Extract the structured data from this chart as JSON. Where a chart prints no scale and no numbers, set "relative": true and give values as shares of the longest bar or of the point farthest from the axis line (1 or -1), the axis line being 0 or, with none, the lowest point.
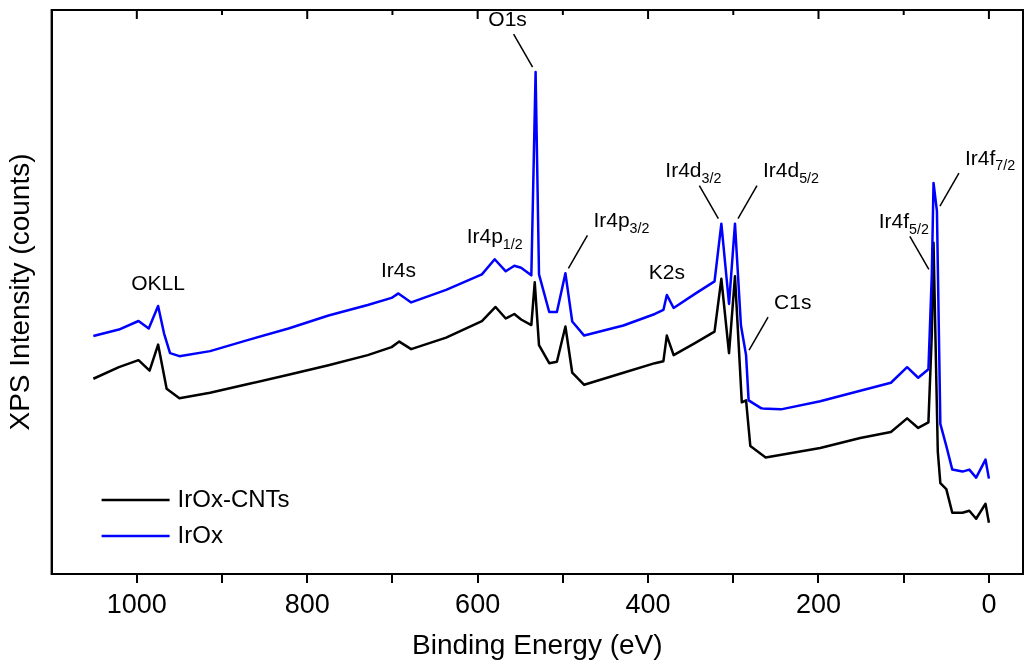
{
  "chart_data": {
    "type": "line",
    "xlabel": "Binding Energy (eV)",
    "ylabel": "XPS Intensity (counts)",
    "relative": true,
    "legend": "bottom left",
    "marker": "none",
    "line_style": "solid",
    "grid": false,
    "xlim": [
      1100,
      -40
    ],
    "xticks": [
      {
        "value": 1000,
        "label": "1000"
      },
      {
        "value": 900,
        "label": null
      },
      {
        "value": 800,
        "label": "800"
      },
      {
        "value": 700,
        "label": null
      },
      {
        "value": 600,
        "label": "600"
      },
      {
        "value": 500,
        "label": null
      },
      {
        "value": 400,
        "label": "400"
      },
      {
        "value": 300,
        "label": null
      },
      {
        "value": 200,
        "label": "200"
      },
      {
        "value": 100,
        "label": null
      },
      {
        "value": 0,
        "label": "0"
      }
    ],
    "series": [
      {
        "name": "IrOx-CNTs",
        "color": "#000000",
        "x": [
          1051,
          1021,
          998,
          985,
          975,
          965,
          950,
          914,
          868,
          822,
          775,
          729,
          701,
          692,
          678,
          637,
          595,
          579,
          567,
          557,
          549,
          537,
          533,
          532,
          528,
          516,
          507,
          497,
          489,
          475,
          429,
          392,
          382,
          378,
          370,
          345,
          322,
          314,
          305,
          298,
          290,
          285,
          280,
          262,
          198,
          151,
          115,
          96,
          83,
          71,
          67,
          65,
          60,
          57,
          50,
          43,
          31,
          23,
          15,
          4,
          0
        ],
        "values": [
          0.389,
          0.412,
          0.426,
          0.405,
          0.457,
          0.369,
          0.35,
          0.361,
          0.379,
          0.397,
          0.416,
          0.436,
          0.452,
          0.463,
          0.448,
          0.471,
          0.504,
          0.532,
          0.509,
          0.518,
          0.507,
          0.496,
          0.581,
          null,
          0.456,
          0.42,
          0.423,
          0.493,
          0.401,
          0.377,
          0.401,
          0.42,
          0.424,
          0.475,
          0.436,
          0.46,
          0.483,
          0.588,
          0.44,
          0.593,
          0.342,
          0.346,
          0.255,
          0.232,
          0.251,
          0.271,
          0.283,
          0.31,
          0.291,
          0.302,
          0.479,
          0.66,
          0.244,
          0.181,
          0.169,
          0.122,
          0.122,
          0.126,
          0.11,
          0.14,
          0.102
        ]
      },
      {
        "name": "IrOx",
        "color": "#0000ff",
        "x": [
          1051,
          1021,
          998,
          986,
          975,
          968,
          961,
          950,
          914,
          868,
          822,
          775,
          729,
          701,
          693,
          678,
          637,
          595,
          580,
          567,
          557,
          549,
          537,
          532,
          528,
          516,
          507,
          497,
          489,
          475,
          429,
          392,
          382,
          378,
          370,
          345,
          322,
          314,
          305,
          298,
          291,
          285,
          282,
          267,
          244,
          198,
          151,
          115,
          96,
          83,
          71,
          67,
          65,
          61,
          57,
          50,
          43,
          31,
          23,
          15,
          4,
          0
        ],
        "values": [
          0.474,
          0.487,
          0.504,
          0.489,
          0.534,
          0.479,
          0.44,
          0.434,
          0.444,
          0.467,
          0.489,
          0.515,
          0.536,
          0.55,
          0.559,
          0.541,
          0.566,
          0.597,
          0.627,
          0.603,
          0.614,
          0.61,
          0.595,
          1,
          0.597,
          0.522,
          0.522,
          0.599,
          0.503,
          0.475,
          0.495,
          0.518,
          0.526,
          0.556,
          0.53,
          0.558,
          0.583,
          0.698,
          0.538,
          0.698,
          0.495,
          0.436,
          0.346,
          0.33,
          0.328,
          0.344,
          0.365,
          0.381,
          0.412,
          0.391,
          0.408,
          0.597,
          0.779,
          0.723,
          0.299,
          0.255,
          0.208,
          0.204,
          0.208,
          0.192,
          0.228,
          0.19
        ]
      }
    ],
    "annotations": [
      {
        "text": "OKLL",
        "x": 975,
        "y": 0.534
      },
      {
        "text": "Ir4s",
        "x": 693,
        "y": 0.559
      },
      {
        "text": "Ir4p$_{1/2}$",
        "x": 580,
        "y": 0.627
      },
      {
        "text": "O1s",
        "x": 532,
        "y": 1
      },
      {
        "text": "Ir4p$_{3/2}$",
        "x": 497,
        "y": 0.599
      },
      {
        "text": "K2s",
        "x": 378,
        "y": 0.556
      },
      {
        "text": "Ir4d$_{3/2}$",
        "x": 314,
        "y": 0.698
      },
      {
        "text": "Ir4d$_{5/2}$",
        "x": 298,
        "y": 0.698
      },
      {
        "text": "C1s",
        "x": 285,
        "y": 0.436
      },
      {
        "text": "Ir4f$_{5/2}$",
        "x": 67,
        "y": 0.597
      },
      {
        "text": "Ir4f$_{7/2}$",
        "x": 61,
        "y": 0.723
      }
    ]
  }
}
